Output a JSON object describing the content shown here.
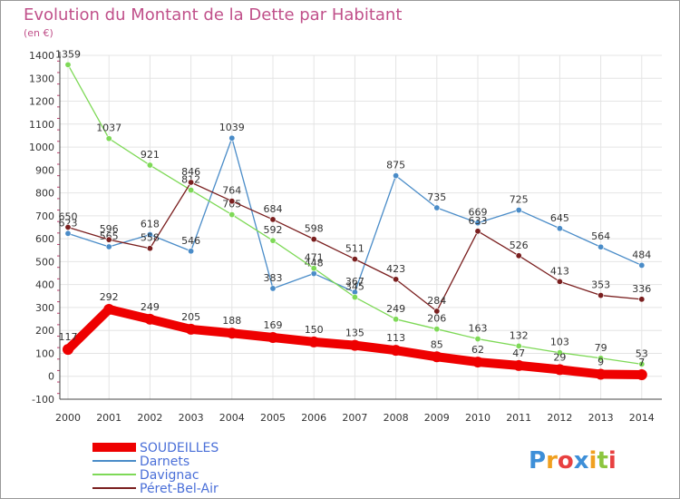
{
  "chart_data": {
    "type": "line",
    "title": "Evolution du Montant de la Dette par Habitant",
    "subtitle": "(en €)",
    "x": [
      "2000",
      "2001",
      "2002",
      "2003",
      "2004",
      "2005",
      "2006",
      "2007",
      "2008",
      "2009",
      "2010",
      "2011",
      "2012",
      "2013",
      "2014"
    ],
    "ylim": [
      -100,
      1400
    ],
    "yticks": [
      -100,
      0,
      100,
      200,
      300,
      400,
      500,
      600,
      700,
      800,
      900,
      1000,
      1100,
      1200,
      1300,
      1400
    ],
    "grid": true,
    "legend_position": "bottom-left",
    "series": [
      {
        "name": "SOUDEILLES",
        "color": "#ee0000",
        "values": [
          117,
          292,
          249,
          205,
          188,
          169,
          150,
          135,
          113,
          85,
          62,
          47,
          29,
          9,
          7
        ]
      },
      {
        "name": "Darnets",
        "color": "#4a8cc8",
        "values": [
          623,
          565,
          618,
          546,
          1039,
          383,
          448,
          367,
          875,
          735,
          669,
          725,
          645,
          564,
          484
        ]
      },
      {
        "name": "Davignac",
        "color": "#7ed957",
        "values": [
          1359,
          1037,
          921,
          812,
          705,
          592,
          471,
          345,
          249,
          206,
          163,
          132,
          103,
          79,
          53
        ]
      },
      {
        "name": "Péret-Bel-Air",
        "color": "#7a1f1f",
        "values": [
          650,
          596,
          558,
          846,
          764,
          684,
          598,
          511,
          423,
          284,
          633,
          526,
          413,
          353,
          336
        ]
      }
    ]
  },
  "logo": {
    "text": "Proxiti"
  }
}
